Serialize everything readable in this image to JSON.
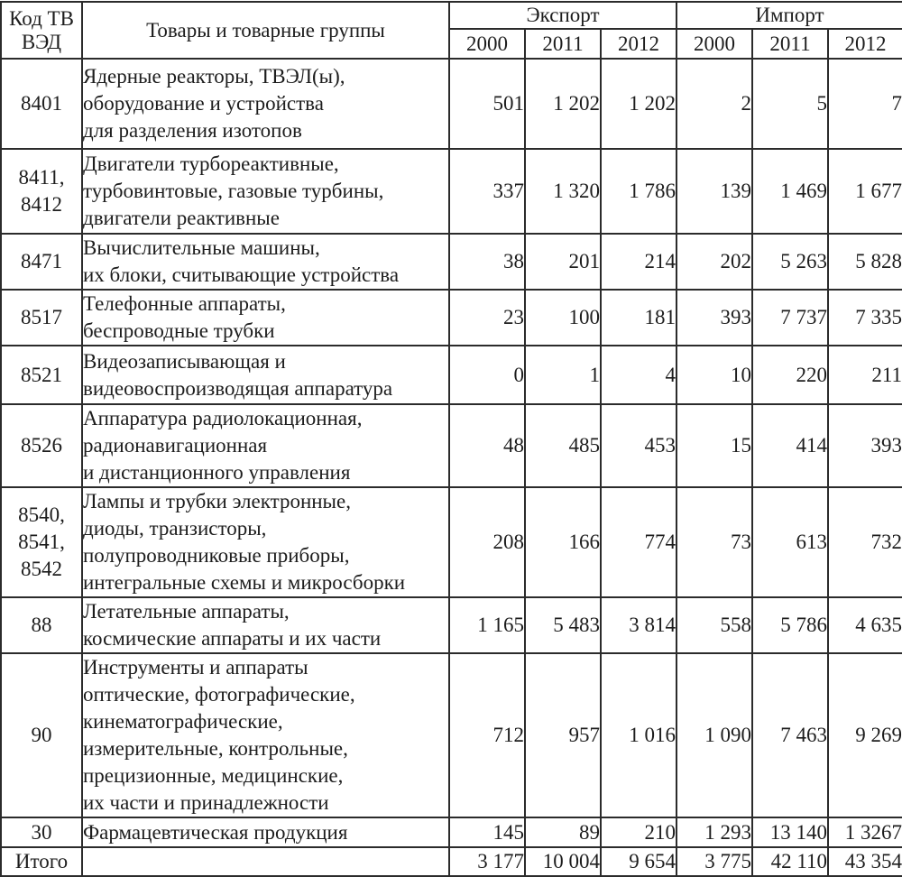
{
  "table": {
    "header": {
      "code_line1": "Код ТВ",
      "code_line2": "ВЭД",
      "goods_label": "Товары и товарные группы",
      "export_label": "Экспорт",
      "import_label": "Импорт",
      "years": [
        "2000",
        "2011",
        "2012"
      ]
    },
    "rows": [
      {
        "code_lines": [
          "8401"
        ],
        "name_lines": [
          "Ядерные реакторы, ТВЭЛ(ы),",
          "оборудование и устройства",
          "для разделения изотопов"
        ],
        "export": [
          "501",
          "1 202",
          "1 202"
        ],
        "import": [
          "2",
          "5",
          "7"
        ]
      },
      {
        "code_lines": [
          "8411,",
          "8412"
        ],
        "name_lines": [
          "Двигатели турбореактивные,",
          "турбовинтовые, газовые турбины,",
          "двигатели реактивные"
        ],
        "export": [
          "337",
          "1 320",
          "1 786"
        ],
        "import": [
          "139",
          "1 469",
          "1 677"
        ]
      },
      {
        "code_lines": [
          "8471"
        ],
        "name_lines": [
          "Вычислительные машины,",
          "их блоки, считывающие устройства"
        ],
        "export": [
          "38",
          "201",
          "214"
        ],
        "import": [
          "202",
          "5 263",
          "5 828"
        ]
      },
      {
        "code_lines": [
          "8517"
        ],
        "name_lines": [
          "Телефонные аппараты,",
          "беспроводные трубки"
        ],
        "export": [
          "23",
          "100",
          "181"
        ],
        "import": [
          "393",
          "7 737",
          "7 335"
        ]
      },
      {
        "code_lines": [
          "8521"
        ],
        "name_lines": [
          "Видеозаписывающая и",
          "видеовоспроизводящая аппаратура"
        ],
        "export": [
          "0",
          "1",
          "4"
        ],
        "import": [
          "10",
          "220",
          "211"
        ]
      },
      {
        "code_lines": [
          "8526"
        ],
        "name_lines": [
          "Аппаратура радиолокационная,",
          "радионавигационная",
          "и дистанционного управления"
        ],
        "export": [
          "48",
          "485",
          "453"
        ],
        "import": [
          "15",
          "414",
          "393"
        ]
      },
      {
        "code_lines": [
          "8540,",
          "8541,",
          "8542"
        ],
        "name_lines": [
          "Лампы и трубки электронные,",
          "диоды, транзисторы,",
          "полупроводниковые приборы,",
          "интегральные схемы и микросборки"
        ],
        "export": [
          "208",
          "166",
          "774"
        ],
        "import": [
          "73",
          "613",
          "732"
        ]
      },
      {
        "code_lines": [
          "88"
        ],
        "name_lines": [
          "Летательные аппараты,",
          "космические аппараты и их части"
        ],
        "export": [
          "1 165",
          "5 483",
          "3 814"
        ],
        "import": [
          "558",
          "5 786",
          "4 635"
        ]
      },
      {
        "code_lines": [
          "90"
        ],
        "name_lines": [
          "Инструменты и аппараты",
          "оптические, фотографические,",
          "кинематографические,",
          "измерительные, контрольные,",
          "прецизионные, медицинские,",
          "их части и принадлежности"
        ],
        "export": [
          "712",
          "957",
          "1 016"
        ],
        "import": [
          "1 090",
          "7 463",
          "9 269"
        ]
      },
      {
        "code_lines": [
          "30"
        ],
        "name_lines": [
          "Фармацевтическая продукция"
        ],
        "export": [
          "145",
          "89",
          "210"
        ],
        "import": [
          "1 293",
          "13 140",
          "1 3267"
        ]
      }
    ],
    "total": {
      "label": "Итого",
      "export": [
        "3 177",
        "10 004",
        "9 654"
      ],
      "import": [
        "3 775",
        "42 110",
        "43 354"
      ]
    }
  }
}
